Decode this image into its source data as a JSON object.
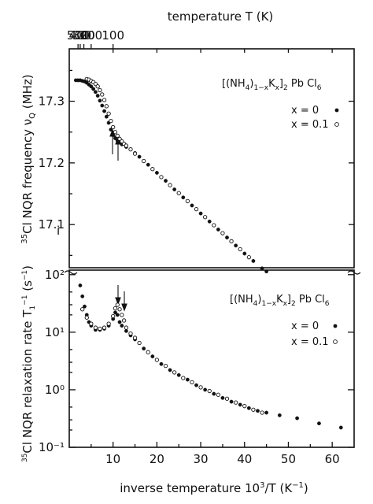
{
  "chart_data": [
    {
      "type": "scatter",
      "panel": "top",
      "title": "",
      "xlabel": "inverse temperature 10³/T (K⁻¹)",
      "ylabel": "³⁵Cl NQR frequency νQ (MHz)",
      "top_xlabel": "temperature T (K)",
      "top_ticks": [
        "100",
        "200",
        "300",
        "400",
        "500"
      ],
      "top_tick_values": [
        100,
        200,
        300,
        400,
        500
      ],
      "xlim": [
        0,
        65
      ],
      "ylim": [
        17.03,
        17.385
      ],
      "y_ticks": [
        "17.1",
        "17.2",
        "17.3"
      ],
      "y_tick_values": [
        17.1,
        17.2,
        17.3
      ],
      "legend": {
        "formula": "[(NH4)1-xKx]2 PbCl6",
        "placement": "top-right",
        "entries": [
          "x = 0",
          "x = 0.1"
        ]
      },
      "annotations": [
        "arrows at transition near 10³/T ≈ 10 and 11"
      ],
      "series": [
        {
          "name": "x = 0",
          "marker": "filled",
          "x": [
            1.5,
            2.0,
            2.5,
            3.0,
            3.5,
            4.0,
            4.5,
            5.0,
            5.5,
            6.0,
            6.5,
            7.0,
            7.5,
            8.0,
            8.5,
            9.0,
            9.5,
            10.0,
            10.5,
            11.0,
            11.5,
            12.0,
            13.0,
            14.0,
            15.0,
            16.0,
            18.0,
            20.0,
            22.0,
            24.0,
            26.0,
            28.0,
            30.0,
            32.0,
            34.0,
            36.0,
            38.0,
            40.0,
            42.0,
            44.0,
            45.0
          ],
          "y": [
            17.334,
            17.334,
            17.334,
            17.333,
            17.332,
            17.33,
            17.327,
            17.324,
            17.32,
            17.315,
            17.309,
            17.301,
            17.293,
            17.284,
            17.275,
            17.265,
            17.254,
            17.245,
            17.24,
            17.236,
            17.233,
            17.23,
            17.226,
            17.222,
            17.216,
            17.21,
            17.197,
            17.184,
            17.171,
            17.157,
            17.144,
            17.131,
            17.118,
            17.105,
            17.092,
            17.079,
            17.066,
            17.053,
            17.041,
            17.029,
            17.024
          ]
        },
        {
          "name": "x = 0.1",
          "marker": "open",
          "x": [
            4.0,
            4.5,
            5.0,
            5.5,
            6.0,
            6.5,
            7.0,
            7.5,
            8.0,
            8.5,
            9.0,
            9.5,
            10.0,
            10.5,
            11.0,
            11.5,
            12.0,
            12.5,
            13.0,
            14.0,
            15.0,
            17.0,
            19.0,
            21.0,
            23.0,
            25.0,
            27.0,
            29.0,
            31.0,
            33.0,
            35.0,
            37.0,
            39.0,
            41.0
          ],
          "y": [
            17.336,
            17.335,
            17.333,
            17.331,
            17.328,
            17.324,
            17.318,
            17.311,
            17.302,
            17.292,
            17.28,
            17.268,
            17.258,
            17.25,
            17.244,
            17.239,
            17.235,
            17.231,
            17.228,
            17.222,
            17.215,
            17.203,
            17.19,
            17.177,
            17.164,
            17.151,
            17.138,
            17.125,
            17.112,
            17.099,
            17.086,
            17.073,
            17.06,
            17.047
          ]
        }
      ]
    },
    {
      "type": "scatter",
      "panel": "bottom",
      "title": "",
      "xlabel": "inverse temperature 10³/T (K⁻¹)",
      "ylabel": "³⁵Cl NQR relaxation rate T₁⁻¹ (s⁻¹)",
      "xlim": [
        0,
        65
      ],
      "x_ticks": [
        "10",
        "20",
        "30",
        "40",
        "50",
        "60"
      ],
      "x_tick_values": [
        10,
        20,
        30,
        40,
        50,
        60
      ],
      "y_scale": "log",
      "ylim": [
        0.1,
        120
      ],
      "y_ticks": [
        "10²",
        "10¹",
        "10⁰",
        "10⁻¹"
      ],
      "y_tick_values": [
        100,
        10,
        1,
        0.1
      ],
      "legend": {
        "formula": "[(NH4)1-xKx]2 PbCl6",
        "placement": "top-right",
        "entries": [
          "x = 0",
          "x = 0.1"
        ]
      },
      "annotations": [
        "arrows at relaxation peaks near 10³/T ≈ 10.5 and 12"
      ],
      "series": [
        {
          "name": "x = 0",
          "marker": "filled",
          "x": [
            2.5,
            3.0,
            3.5,
            4.0,
            4.5,
            5.0,
            6.0,
            7.0,
            8.0,
            9.0,
            10.0,
            10.5,
            11.0,
            11.5,
            12.0,
            13.0,
            14.0,
            15.0,
            17.0,
            19.0,
            21.0,
            23.0,
            25.0,
            27.0,
            29.0,
            31.0,
            33.0,
            35.0,
            37.0,
            39.0,
            41.0,
            43.0,
            45.0,
            48.0,
            52.0,
            57.0,
            62.0
          ],
          "y": [
            65,
            42,
            28,
            20,
            15,
            13,
            11,
            11,
            11.5,
            13,
            17,
            22,
            20,
            15,
            13,
            10.5,
            8.8,
            7.5,
            5.2,
            3.8,
            2.8,
            2.2,
            1.8,
            1.5,
            1.2,
            1.0,
            0.85,
            0.72,
            0.62,
            0.55,
            0.48,
            0.43,
            0.4,
            0.36,
            0.32,
            0.26,
            0.22
          ]
        },
        {
          "name": "x = 0.1",
          "marker": "open",
          "x": [
            3.0,
            4.0,
            5.0,
            6.0,
            7.0,
            8.0,
            9.0,
            10.0,
            10.5,
            11.0,
            11.5,
            12.0,
            12.5,
            13.0,
            14.0,
            15.0,
            16.0,
            18.0,
            20.0,
            22.0,
            24.0,
            26.0,
            28.0,
            30.0,
            32.0,
            34.0,
            36.0,
            38.0,
            40.0,
            42.0,
            44.0
          ],
          "y": [
            25,
            18,
            14,
            12,
            11.5,
            12,
            14,
            19,
            26,
            30,
            25,
            20,
            16,
            12,
            9.5,
            8.0,
            6.5,
            4.5,
            3.3,
            2.6,
            2.0,
            1.6,
            1.35,
            1.1,
            0.95,
            0.82,
            0.7,
            0.6,
            0.52,
            0.45,
            0.4
          ]
        }
      ]
    }
  ],
  "labels": {
    "top_axis_title": "temperature T (K)",
    "bottom_axis_title": "inverse temperature 10",
    "bottom_axis_title_sup": "3",
    "bottom_axis_title_tail": "/T (K",
    "bottom_axis_title_sup2": "−1",
    "bottom_axis_title_end": ")",
    "top_y_title": "Cl NQR frequency ν",
    "top_y_sup": "35",
    "top_y_sub": "Q",
    "top_y_tail": " (MHz)",
    "bot_y_title": "Cl NQR relaxation rate T",
    "bot_y_sup": "35",
    "bot_y_sub": "1",
    "bot_y_sup2": "−1",
    "bot_y_tail": " (s",
    "bot_y_sup3": "−1",
    "bot_y_end": ")",
    "formula_a": "[(NH",
    "formula_sub4": "4",
    "formula_b": ")",
    "formula_sub1x": "1−x",
    "formula_c": "K",
    "formula_subx": "x",
    "formula_d": "]",
    "formula_sub2": "2",
    "formula_e": " Pb Cl",
    "formula_sub6": "6",
    "legend_x0": "x = 0",
    "legend_x01": "x = 0.1",
    "y_break_mark": "i"
  }
}
